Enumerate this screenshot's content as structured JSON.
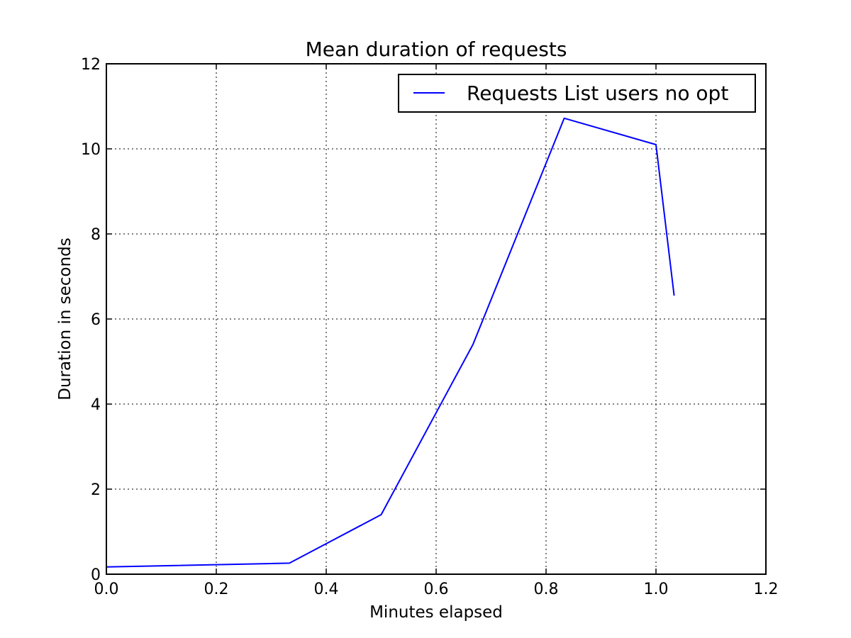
{
  "chart_data": {
    "type": "line",
    "title": "Mean duration of requests",
    "xlabel": "Minutes elapsed",
    "ylabel": "Duration in seconds",
    "xlim": [
      0.0,
      1.2
    ],
    "ylim": [
      0,
      12
    ],
    "xticks": [
      0.0,
      0.2,
      0.4,
      0.6,
      0.8,
      1.0,
      1.2
    ],
    "xtick_labels": [
      "0.0",
      "0.2",
      "0.4",
      "0.6",
      "0.8",
      "1.0",
      "1.2"
    ],
    "yticks": [
      0,
      2,
      4,
      6,
      8,
      10,
      12
    ],
    "ytick_labels": [
      "0",
      "2",
      "4",
      "6",
      "8",
      "10",
      "12"
    ],
    "grid": true,
    "legend_position": "top-right",
    "series": [
      {
        "name": "Requests List users no opt",
        "color": "#0000ff",
        "x": [
          0.0,
          0.333,
          0.5,
          0.667,
          0.833,
          1.0,
          1.033
        ],
        "y": [
          0.17,
          0.26,
          1.4,
          5.4,
          10.72,
          10.1,
          6.55
        ]
      }
    ]
  }
}
